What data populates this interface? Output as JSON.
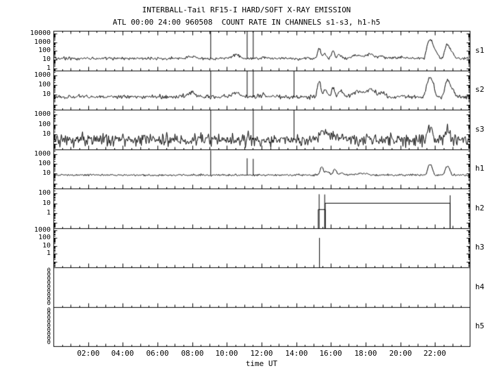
{
  "title": "INTERBALL-Tail RF15-I HARD/SOFT X-RAY EMISSION",
  "subtitle": "ATL 00:00 24:00 960508  COUNT RATE IN CHANNELS s1-s3, h1-h5",
  "xlabel": "time UT",
  "colors": {
    "foreground": "#000000",
    "background": "#ffffff"
  },
  "chart_data": {
    "type": "line",
    "title": "INTERBALL-Tail RF15-I HARD/SOFT X-RAY EMISSION",
    "subtitle": "ATL 00:00 24:00 960508  COUNT RATE IN CHANNELS s1-s3, h1-h5",
    "xlabel": "time UT",
    "x_range_hours": [
      0,
      24
    ],
    "grid": false,
    "x_ticks": [
      {
        "hour": 2,
        "label": "02:00"
      },
      {
        "hour": 4,
        "label": "04:00"
      },
      {
        "hour": 6,
        "label": "06:00"
      },
      {
        "hour": 8,
        "label": "08:00"
      },
      {
        "hour": 10,
        "label": "10:00"
      },
      {
        "hour": 12,
        "label": "12:00"
      },
      {
        "hour": 14,
        "label": "14:00"
      },
      {
        "hour": 16,
        "label": "16:00"
      },
      {
        "hour": 18,
        "label": "18:00"
      },
      {
        "hour": 20,
        "label": "20:00"
      },
      {
        "hour": 22,
        "label": "22:00"
      }
    ],
    "panels": [
      {
        "label": "s1",
        "log_top": 4.3,
        "log_bottom": -0.2,
        "yticks": [
          {
            "text": "10000",
            "log": 4
          },
          {
            "text": "1000",
            "log": 3
          },
          {
            "text": "100",
            "log": 2
          },
          {
            "text": "10",
            "log": 1
          },
          {
            "text": "1",
            "log": 0
          }
        ],
        "baseline": 15,
        "noise_sigma": 0.12,
        "bumps": [
          {
            "t": 7.95,
            "w": 0.22,
            "v": 28
          },
          {
            "t": 10.5,
            "w": 0.18,
            "v": 42
          },
          {
            "t": 12.15,
            "w": 0.1,
            "v": 22
          },
          {
            "t": 13.1,
            "w": 0.08,
            "v": 18
          },
          {
            "t": 15.3,
            "w": 0.06,
            "v": 200
          },
          {
            "t": 15.6,
            "w": 0.08,
            "v": 60
          },
          {
            "t": 16.1,
            "w": 0.07,
            "v": 90
          },
          {
            "t": 16.5,
            "w": 0.1,
            "v": 40
          },
          {
            "t": 17.5,
            "w": 0.25,
            "v": 35
          },
          {
            "t": 18.25,
            "w": 0.2,
            "v": 48
          },
          {
            "t": 18.9,
            "w": 0.12,
            "v": 28
          },
          {
            "t": 20.0,
            "w": 0.4,
            "v": 20
          },
          {
            "t": 21.7,
            "w": 0.1,
            "v": 1800
          },
          {
            "t": 21.95,
            "w": 0.12,
            "v": 120
          },
          {
            "t": 22.7,
            "w": 0.09,
            "v": 600
          },
          {
            "t": 22.95,
            "w": 0.1,
            "v": 80
          }
        ],
        "spikes": [
          {
            "t": 9.05,
            "v": 100000
          },
          {
            "t": 11.15,
            "v": 100000
          },
          {
            "t": 11.5,
            "v": 100000
          }
        ]
      },
      {
        "label": "s2",
        "log_top": 3.5,
        "log_bottom": -0.5,
        "yticks": [
          {
            "text": "1000",
            "log": 3
          },
          {
            "text": "100",
            "log": 2
          },
          {
            "text": "10",
            "log": 1
          }
        ],
        "baseline": 7,
        "noise_sigma": 0.14,
        "bumps": [
          {
            "t": 7.95,
            "w": 0.22,
            "v": 16
          },
          {
            "t": 10.5,
            "w": 0.18,
            "v": 20
          },
          {
            "t": 12.15,
            "w": 0.1,
            "v": 12
          },
          {
            "t": 15.3,
            "w": 0.06,
            "v": 250
          },
          {
            "t": 15.65,
            "w": 0.08,
            "v": 40
          },
          {
            "t": 16.1,
            "w": 0.07,
            "v": 60
          },
          {
            "t": 16.55,
            "w": 0.12,
            "v": 25
          },
          {
            "t": 17.55,
            "w": 0.25,
            "v": 25
          },
          {
            "t": 18.3,
            "w": 0.2,
            "v": 35
          },
          {
            "t": 18.95,
            "w": 0.12,
            "v": 18
          },
          {
            "t": 21.7,
            "w": 0.1,
            "v": 800
          },
          {
            "t": 22.7,
            "w": 0.09,
            "v": 350
          },
          {
            "t": 22.95,
            "w": 0.1,
            "v": 45
          }
        ],
        "spikes": [
          {
            "t": 9.05,
            "v": 100000
          },
          {
            "t": 11.15,
            "v": 100000
          },
          {
            "t": 11.5,
            "v": 100000
          },
          {
            "t": 13.85,
            "v": 100000
          }
        ]
      },
      {
        "label": "s3",
        "log_top": 3.5,
        "log_bottom": -0.5,
        "yticks": [
          {
            "text": "1000",
            "log": 3
          },
          {
            "text": "100",
            "log": 2
          },
          {
            "text": "10",
            "log": 1
          }
        ],
        "baseline": 3,
        "noise_sigma": 0.42,
        "bumps": [
          {
            "t": 15.5,
            "w": 0.12,
            "v": 25
          },
          {
            "t": 15.9,
            "w": 0.15,
            "v": 10
          },
          {
            "t": 16.3,
            "w": 0.2,
            "v": 7
          },
          {
            "t": 21.7,
            "w": 0.09,
            "v": 60
          },
          {
            "t": 22.7,
            "w": 0.09,
            "v": 40
          }
        ],
        "spikes": [
          {
            "t": 9.05,
            "v": 100000
          },
          {
            "t": 11.5,
            "v": 100000
          },
          {
            "t": 13.85,
            "v": 100000
          }
        ]
      },
      {
        "label": "h1",
        "log_top": 3.5,
        "log_bottom": -0.5,
        "yticks": [
          {
            "text": "1000",
            "log": 3
          },
          {
            "text": "100",
            "log": 2
          },
          {
            "text": "10",
            "log": 1
          }
        ],
        "baseline": 8,
        "noise_sigma": 0.07,
        "bumps": [
          {
            "t": 15.45,
            "w": 0.07,
            "v": 55
          },
          {
            "t": 15.75,
            "w": 0.1,
            "v": 18
          },
          {
            "t": 16.2,
            "w": 0.08,
            "v": 30
          },
          {
            "t": 16.6,
            "w": 0.1,
            "v": 14
          },
          {
            "t": 17.8,
            "w": 0.3,
            "v": 11
          },
          {
            "t": 21.7,
            "w": 0.09,
            "v": 90
          },
          {
            "t": 22.7,
            "w": 0.09,
            "v": 60
          }
        ],
        "spikes": [
          {
            "t": 9.05,
            "v": 2500
          },
          {
            "t": 11.15,
            "v": 400
          },
          {
            "t": 11.5,
            "v": 350
          }
        ]
      },
      {
        "label": "h2",
        "log_top": 2.5,
        "log_bottom": -1.5,
        "yticks": [
          {
            "text": "100",
            "log": 2
          },
          {
            "text": "10",
            "log": 1
          },
          {
            "text": "1",
            "log": 0
          }
        ],
        "baseline": null,
        "noise_sigma": 0,
        "segments": [
          {
            "t1": 15.25,
            "t2": 15.65,
            "v": 2.5
          },
          {
            "t1": 15.65,
            "t2": 22.85,
            "v": 11
          }
        ],
        "spikes": [
          {
            "t": 15.3,
            "v": 90
          },
          {
            "t": 15.62,
            "v": 85
          },
          {
            "t": 22.85,
            "v": 70
          }
        ]
      },
      {
        "label": "h3",
        "log_top": 3.3,
        "log_bottom": -1.7,
        "yticks": [
          {
            "text": "1000",
            "log": 3
          },
          {
            "text": "100",
            "log": 2
          },
          {
            "text": "10",
            "log": 1
          },
          {
            "text": "1",
            "log": 0
          }
        ],
        "baseline": null,
        "noise_sigma": 0,
        "spikes": [
          {
            "t": 15.32,
            "v": 120
          }
        ]
      },
      {
        "label": "h4",
        "log_top": 1,
        "log_bottom": 0,
        "yticks": [],
        "zero_labels": [
          "0",
          "0",
          "0",
          "0",
          "0",
          "0",
          "0",
          "0",
          "0"
        ],
        "baseline": null,
        "noise_sigma": 0
      },
      {
        "label": "h5",
        "log_top": 1,
        "log_bottom": 0,
        "yticks": [],
        "zero_labels": [
          "0",
          "0",
          "0",
          "0",
          "0",
          "0",
          "0",
          "0",
          "0"
        ],
        "baseline": null,
        "noise_sigma": 0
      }
    ]
  }
}
